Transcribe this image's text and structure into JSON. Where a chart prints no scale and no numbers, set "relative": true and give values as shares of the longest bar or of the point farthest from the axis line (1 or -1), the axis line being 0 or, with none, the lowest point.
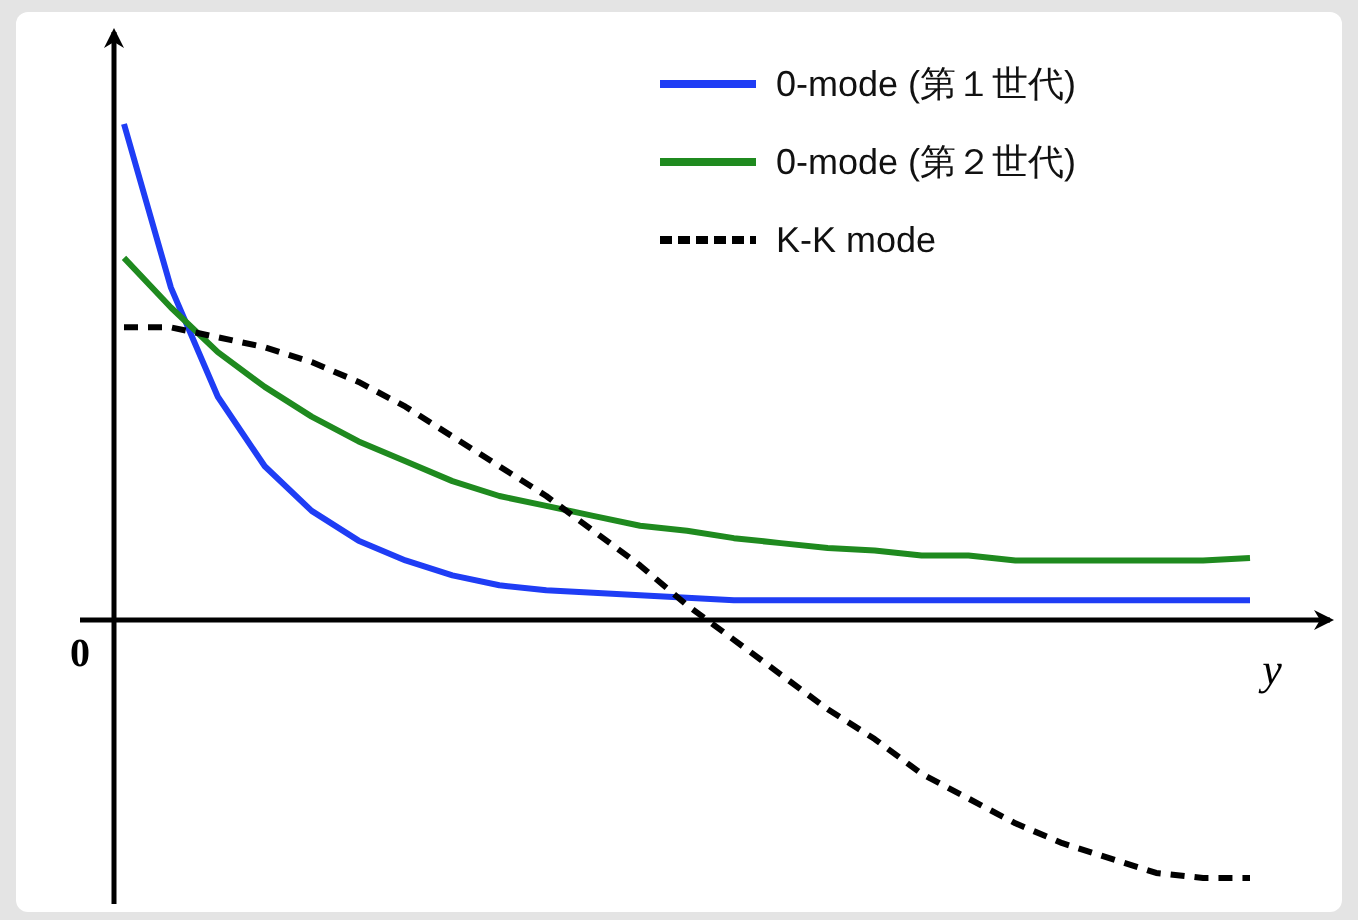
{
  "chart_data": {
    "type": "line",
    "relative": true,
    "xlabel": "y",
    "legend": "top right",
    "annotations": [
      "0"
    ],
    "categories": [
      null,
      null,
      null,
      null,
      null,
      null,
      null,
      null,
      null,
      null,
      null,
      null,
      null,
      null,
      null,
      null,
      null,
      null,
      null,
      null,
      null,
      null,
      null,
      null,
      null
    ],
    "series": [
      {
        "name": "0-mode (第１世代)",
        "color": "#1f3df5",
        "line_style": "solid",
        "values": [
          1.0,
          0.67,
          0.45,
          0.31,
          0.22,
          0.16,
          0.12,
          0.09,
          0.07,
          0.06,
          0.055,
          0.05,
          0.045,
          0.04,
          0.04,
          0.04,
          0.04,
          0.04,
          0.04,
          0.04,
          0.04,
          0.04,
          0.04,
          0.04,
          0.04
        ]
      },
      {
        "name": "0-mode (第２世代)",
        "color": "#1f8a1f",
        "line_style": "solid",
        "values": [
          0.73,
          0.63,
          0.54,
          0.47,
          0.41,
          0.36,
          0.32,
          0.28,
          0.25,
          0.23,
          0.21,
          0.19,
          0.18,
          0.165,
          0.155,
          0.145,
          0.14,
          0.13,
          0.13,
          0.12,
          0.12,
          0.12,
          0.12,
          0.12,
          0.125
        ]
      },
      {
        "name": "K-K mode",
        "color": "#000000",
        "line_style": "dashed",
        "values": [
          0.59,
          0.59,
          0.57,
          0.55,
          0.52,
          0.48,
          0.43,
          0.37,
          0.31,
          0.25,
          0.18,
          0.11,
          0.03,
          -0.04,
          -0.11,
          -0.18,
          -0.24,
          -0.31,
          -0.36,
          -0.41,
          -0.45,
          -0.48,
          -0.51,
          -0.52,
          -0.52
        ]
      }
    ]
  }
}
